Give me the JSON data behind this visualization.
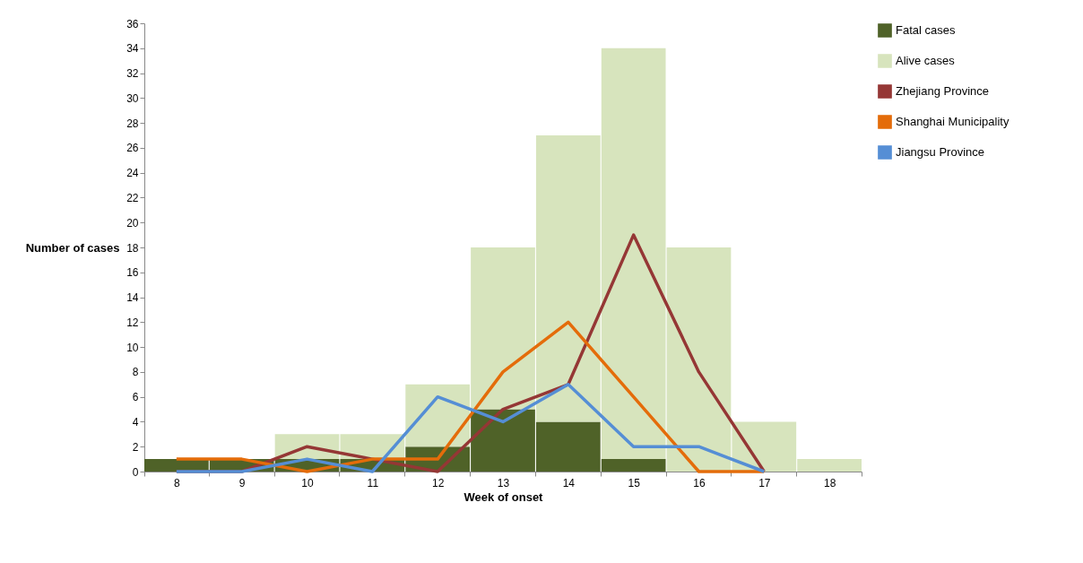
{
  "chart_data": {
    "type": "bar",
    "xlabel": "Week of onset",
    "ylabel": "Number of cases",
    "categories": [
      "8",
      "9",
      "10",
      "11",
      "12",
      "13",
      "14",
      "15",
      "16",
      "17",
      "18"
    ],
    "stacked": true,
    "series": [
      {
        "name": "Fatal cases",
        "color": "#4f6228",
        "values": [
          1,
          1,
          1,
          1,
          2,
          5,
          4,
          1,
          0,
          0,
          0
        ]
      },
      {
        "name": "Alive cases",
        "color": "#d7e4bd",
        "values": [
          0,
          0,
          2,
          2,
          5,
          13,
          23,
          33,
          18,
          4,
          1
        ]
      },
      {
        "name": "Zhejiang Province",
        "type": "line",
        "color": "#953735",
        "values": [
          0,
          0,
          2,
          1,
          0,
          5,
          7,
          19,
          8,
          0,
          null
        ]
      },
      {
        "name": "Shanghai Municipality",
        "type": "line",
        "color": "#e46c0a",
        "values": [
          1,
          1,
          0,
          1,
          1,
          8,
          12,
          6,
          0,
          0,
          null
        ]
      },
      {
        "name": "Jiangsu Province",
        "type": "line",
        "color": "#558ed5",
        "values": [
          0,
          0,
          1,
          0,
          6,
          4,
          7,
          2,
          2,
          0,
          null
        ]
      }
    ],
    "ylim": [
      0,
      36
    ],
    "yticks": [
      0,
      2,
      4,
      6,
      8,
      10,
      12,
      14,
      16,
      18,
      20,
      22,
      24,
      26,
      28,
      30,
      32,
      34,
      36
    ],
    "grid": false,
    "legend": "right"
  }
}
